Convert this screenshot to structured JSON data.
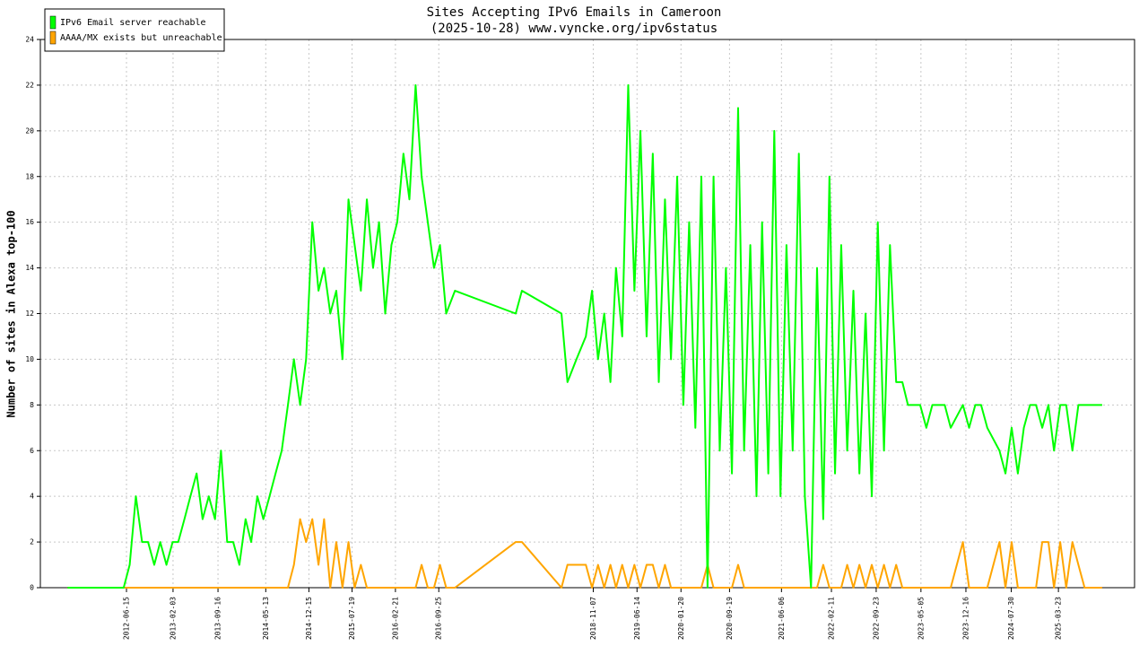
{
  "chart_data": {
    "type": "line",
    "title": "Sites Accepting IPv6 Emails in Cameroon",
    "subtitle": "(2025-10-28) www.vyncke.org/ipv6status",
    "y_label": "Number of sites in Alexa top-100",
    "grid": true,
    "legend_position": "upper left",
    "xlim": [
      "2011-04-11",
      "2026-04-08"
    ],
    "xticks": [
      "2012-06-15",
      "2013-02-03",
      "2013-09-16",
      "2014-05-13",
      "2014-12-15",
      "2015-07-19",
      "2016-02-21",
      "2016-09-25",
      "2018-11-07",
      "2019-06-14",
      "2020-01-20",
      "2020-09-19",
      "2021-06-06",
      "2022-02-11",
      "2022-09-23",
      "2023-05-05",
      "2023-12-16",
      "2024-07-30",
      "2025-03-23"
    ],
    "ylim": [
      0,
      24
    ],
    "yticks": [
      0,
      2,
      4,
      6,
      8,
      10,
      12,
      14,
      16,
      18,
      20,
      22,
      24
    ],
    "x": [
      "2011-08-25",
      "2012-06-01",
      "2012-07-01",
      "2012-08-01",
      "2012-09-01",
      "2012-10-01",
      "2012-11-01",
      "2012-12-01",
      "2013-01-01",
      "2013-02-01",
      "2013-03-01",
      "2013-04-01",
      "2013-05-01",
      "2013-06-01",
      "2013-07-01",
      "2013-08-01",
      "2013-09-01",
      "2013-10-01",
      "2013-11-01",
      "2013-12-01",
      "2014-01-01",
      "2014-02-01",
      "2014-03-01",
      "2014-04-01",
      "2014-05-01",
      "2014-06-01",
      "2014-07-01",
      "2014-08-01",
      "2014-09-01",
      "2014-10-01",
      "2014-11-01",
      "2014-12-01",
      "2015-01-01",
      "2015-02-01",
      "2015-03-01",
      "2015-04-01",
      "2015-05-01",
      "2015-06-01",
      "2015-07-01",
      "2015-08-01",
      "2015-09-01",
      "2015-10-01",
      "2015-11-01",
      "2015-12-01",
      "2016-01-01",
      "2016-02-01",
      "2016-03-01",
      "2016-04-01",
      "2016-05-01",
      "2016-06-01",
      "2016-07-01",
      "2016-08-01",
      "2016-09-01",
      "2016-10-01",
      "2016-11-01",
      "2016-12-15",
      "2017-10-15",
      "2017-11-15",
      "2018-06-01",
      "2018-07-01",
      "2018-08-15",
      "2018-10-01",
      "2018-11-01",
      "2018-12-01",
      "2019-01-01",
      "2019-02-01",
      "2019-03-01",
      "2019-04-01",
      "2019-05-01",
      "2019-06-01",
      "2019-07-01",
      "2019-08-01",
      "2019-09-01",
      "2019-10-01",
      "2019-11-01",
      "2019-12-01",
      "2020-01-01",
      "2020-02-01",
      "2020-03-01",
      "2020-04-01",
      "2020-05-01",
      "2020-06-01",
      "2020-07-01",
      "2020-08-01",
      "2020-09-01",
      "2020-10-01",
      "2020-11-01",
      "2020-12-01",
      "2021-01-01",
      "2021-02-01",
      "2021-03-01",
      "2021-04-01",
      "2021-05-01",
      "2021-06-01",
      "2021-07-01",
      "2021-08-01",
      "2021-09-01",
      "2021-10-01",
      "2021-11-01",
      "2021-12-01",
      "2022-01-01",
      "2022-02-01",
      "2022-03-01",
      "2022-04-01",
      "2022-05-01",
      "2022-06-01",
      "2022-07-01",
      "2022-08-01",
      "2022-09-01",
      "2022-10-01",
      "2022-11-01",
      "2022-12-01",
      "2023-01-01",
      "2023-02-01",
      "2023-03-01",
      "2023-05-01",
      "2023-06-01",
      "2023-07-01",
      "2023-09-01",
      "2023-10-01",
      "2023-12-01",
      "2024-01-01",
      "2024-02-01",
      "2024-03-01",
      "2024-04-01",
      "2024-06-01",
      "2024-07-01",
      "2024-08-01",
      "2024-09-01",
      "2024-10-01",
      "2024-11-01",
      "2024-12-01",
      "2025-01-01",
      "2025-02-01",
      "2025-03-01",
      "2025-04-01",
      "2025-05-01",
      "2025-06-01",
      "2025-07-01",
      "2025-08-01",
      "2025-10-28"
    ],
    "series": [
      {
        "name": "IPv6 Email server reachable",
        "color": "#00ff00",
        "values": [
          0,
          0,
          1,
          4,
          2,
          2,
          1,
          2,
          1,
          2,
          2,
          3,
          4,
          5,
          3,
          4,
          3,
          6,
          2,
          2,
          1,
          3,
          2,
          4,
          3,
          4,
          5,
          6,
          8,
          10,
          8,
          10,
          16,
          13,
          14,
          12,
          13,
          10,
          17,
          15,
          13,
          17,
          14,
          16,
          12,
          15,
          16,
          19,
          17,
          22,
          18,
          16,
          14,
          15,
          12,
          13,
          12,
          13,
          12,
          9,
          10,
          11,
          13,
          10,
          12,
          9,
          14,
          11,
          22,
          13,
          20,
          11,
          19,
          9,
          17,
          10,
          18,
          8,
          16,
          7,
          18,
          0,
          18,
          6,
          14,
          5,
          21,
          6,
          15,
          4,
          16,
          5,
          20,
          4,
          15,
          6,
          19,
          4,
          0,
          14,
          3,
          18,
          5,
          15,
          6,
          13,
          5,
          12,
          4,
          16,
          6,
          15,
          9,
          9,
          8,
          8,
          7,
          8,
          8,
          7,
          8,
          7,
          8,
          8,
          7,
          6,
          5,
          7,
          5,
          7,
          8,
          8,
          7,
          8,
          6,
          8,
          8,
          6,
          8,
          8,
          8
        ]
      },
      {
        "name": "AAAA/MX exists but unreachable",
        "color": "#ffa500",
        "values": [
          0,
          0,
          0,
          0,
          0,
          0,
          0,
          0,
          0,
          0,
          0,
          0,
          0,
          0,
          0,
          0,
          0,
          0,
          0,
          0,
          0,
          0,
          0,
          0,
          0,
          0,
          0,
          0,
          0,
          1,
          3,
          2,
          3,
          1,
          3,
          0,
          2,
          0,
          2,
          0,
          1,
          0,
          0,
          0,
          0,
          0,
          0,
          0,
          0,
          0,
          1,
          0,
          0,
          1,
          0,
          0,
          2,
          2,
          0,
          1,
          1,
          1,
          0,
          1,
          0,
          1,
          0,
          1,
          0,
          1,
          0,
          1,
          1,
          0,
          1,
          0,
          0,
          0,
          0,
          0,
          0,
          1,
          0,
          0,
          0,
          0,
          1,
          0,
          0,
          0,
          0,
          0,
          0,
          0,
          0,
          0,
          0,
          0,
          0,
          0,
          1,
          0,
          0,
          0,
          1,
          0,
          1,
          0,
          1,
          0,
          1,
          0,
          1,
          0,
          0,
          0,
          0,
          0,
          0,
          0,
          2,
          0,
          0,
          0,
          0,
          2,
          0,
          2,
          0,
          0,
          0,
          0,
          2,
          2,
          0,
          2,
          0,
          2,
          1,
          0,
          0
        ]
      }
    ]
  }
}
